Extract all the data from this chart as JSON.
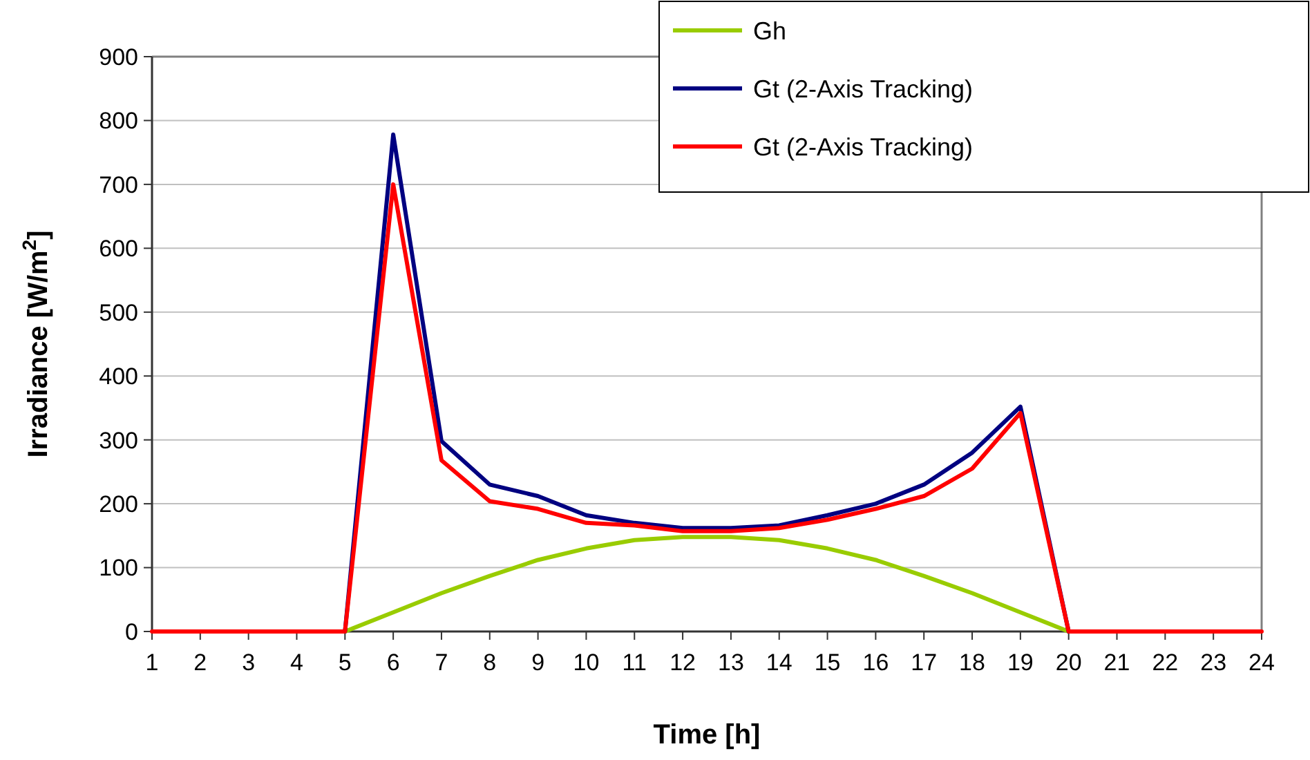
{
  "chart_data": {
    "type": "line",
    "xlabel": "Time [h]",
    "ylabel": "Irradiance [W/m$^{2}$]",
    "x": [
      1,
      2,
      3,
      4,
      5,
      6,
      7,
      8,
      9,
      10,
      11,
      12,
      13,
      14,
      15,
      16,
      17,
      18,
      19,
      20,
      21,
      22,
      23,
      24
    ],
    "xlim": [
      1,
      24
    ],
    "xticks": [
      1,
      2,
      3,
      4,
      5,
      6,
      7,
      8,
      9,
      10,
      11,
      12,
      13,
      14,
      15,
      16,
      17,
      18,
      19,
      20,
      21,
      22,
      23,
      24
    ],
    "ylim": [
      0,
      900
    ],
    "yticks": [
      0,
      100,
      200,
      300,
      400,
      500,
      600,
      700,
      800,
      900
    ],
    "grid": "y",
    "legend": "top right",
    "marker": "none",
    "line_style": "solid",
    "series": [
      {
        "name": "Gh",
        "color": "#99cc00",
        "values": [
          null,
          null,
          null,
          null,
          0,
          30,
          60,
          87,
          112,
          130,
          143,
          148,
          148,
          143,
          130,
          112,
          87,
          60,
          30,
          0,
          null,
          null,
          null,
          null
        ]
      },
      {
        "name": "Gt (2-Axis Tracking)",
        "color": "#000080",
        "values": [
          null,
          null,
          null,
          null,
          0,
          778,
          298,
          230,
          212,
          182,
          170,
          162,
          162,
          166,
          182,
          200,
          230,
          280,
          352,
          0,
          null,
          null,
          null,
          null
        ]
      },
      {
        "name": "Gt (2-Axis Tracking)",
        "color": "#ff0000",
        "values": [
          0,
          0,
          0,
          0,
          0,
          700,
          268,
          204,
          192,
          170,
          166,
          157,
          157,
          162,
          175,
          192,
          212,
          255,
          342,
          0,
          0,
          0,
          0,
          0
        ]
      }
    ]
  }
}
